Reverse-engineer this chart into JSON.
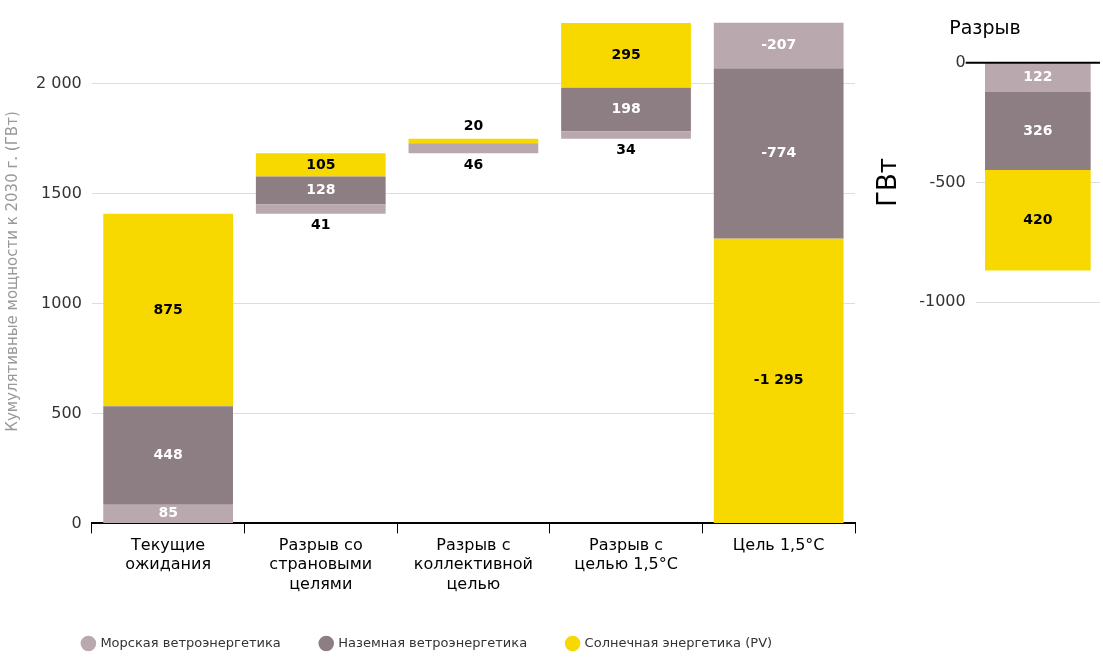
{
  "chart_data": [
    {
      "type": "bar",
      "ylabel": "Кумулятивные мощности к 2030 г. (ГВт)",
      "categories": [
        "Текущие ожидания",
        "Разрыв со страновыми целями",
        "Разрыв с коллективной целью",
        "Разрыв с целью 1,5°C",
        "Цель 1,5°C"
      ],
      "series": [
        {
          "name": "Морская ветроэнергетика",
          "color": "#b9a8ae",
          "values": [
            85,
            41,
            46,
            34,
            -207
          ],
          "base": [
            0,
            1408,
            1682,
            1748,
            2276
          ],
          "value_labels": [
            "85",
            "41",
            "46",
            "34",
            "-207"
          ]
        },
        {
          "name": "Наземная ветроэнергетика",
          "color": "#8d7e83",
          "values": [
            448,
            128,
            null,
            198,
            -774
          ],
          "base": [
            85,
            1449,
            null,
            1782,
            2069
          ],
          "value_labels": [
            "448",
            "128",
            null,
            "198",
            "-774"
          ]
        },
        {
          "name": "Солнечная энергетика (PV)",
          "color": "#f7d900",
          "values": [
            875,
            105,
            20,
            295,
            -1295
          ],
          "base": [
            533,
            1577,
            1728,
            1980,
            1295
          ],
          "value_labels": [
            "875",
            "105",
            "20",
            "295",
            "-1 295"
          ]
        }
      ],
      "ylim": [
        0,
        2290
      ],
      "yticks": [
        0,
        500,
        1000,
        1500,
        {
          "value": 2000,
          "label": "2 000"
        }
      ],
      "grid": "y",
      "legend": "bottom"
    },
    {
      "type": "bar",
      "title": "Разрыв",
      "ylabel": "ГВт",
      "categories": [
        null
      ],
      "series": [
        {
          "color": "#b9a8ae",
          "values": [
            122
          ],
          "base": [
            -122
          ],
          "value_labels": [
            "122"
          ]
        },
        {
          "color": "#8d7e83",
          "values": [
            326
          ],
          "base": [
            -448
          ],
          "value_labels": [
            "326"
          ]
        },
        {
          "color": "#f7d900",
          "values": [
            420
          ],
          "base": [
            -868
          ],
          "value_labels": [
            "420"
          ]
        }
      ],
      "ylim": [
        -1000,
        0
      ],
      "yticks": [
        0,
        -500,
        -1000
      ],
      "grid": "y",
      "tick_labels": "y",
      "ref_lines": [
        {
          "axis": "y",
          "value": 0,
          "color": "#000000"
        }
      ]
    }
  ]
}
